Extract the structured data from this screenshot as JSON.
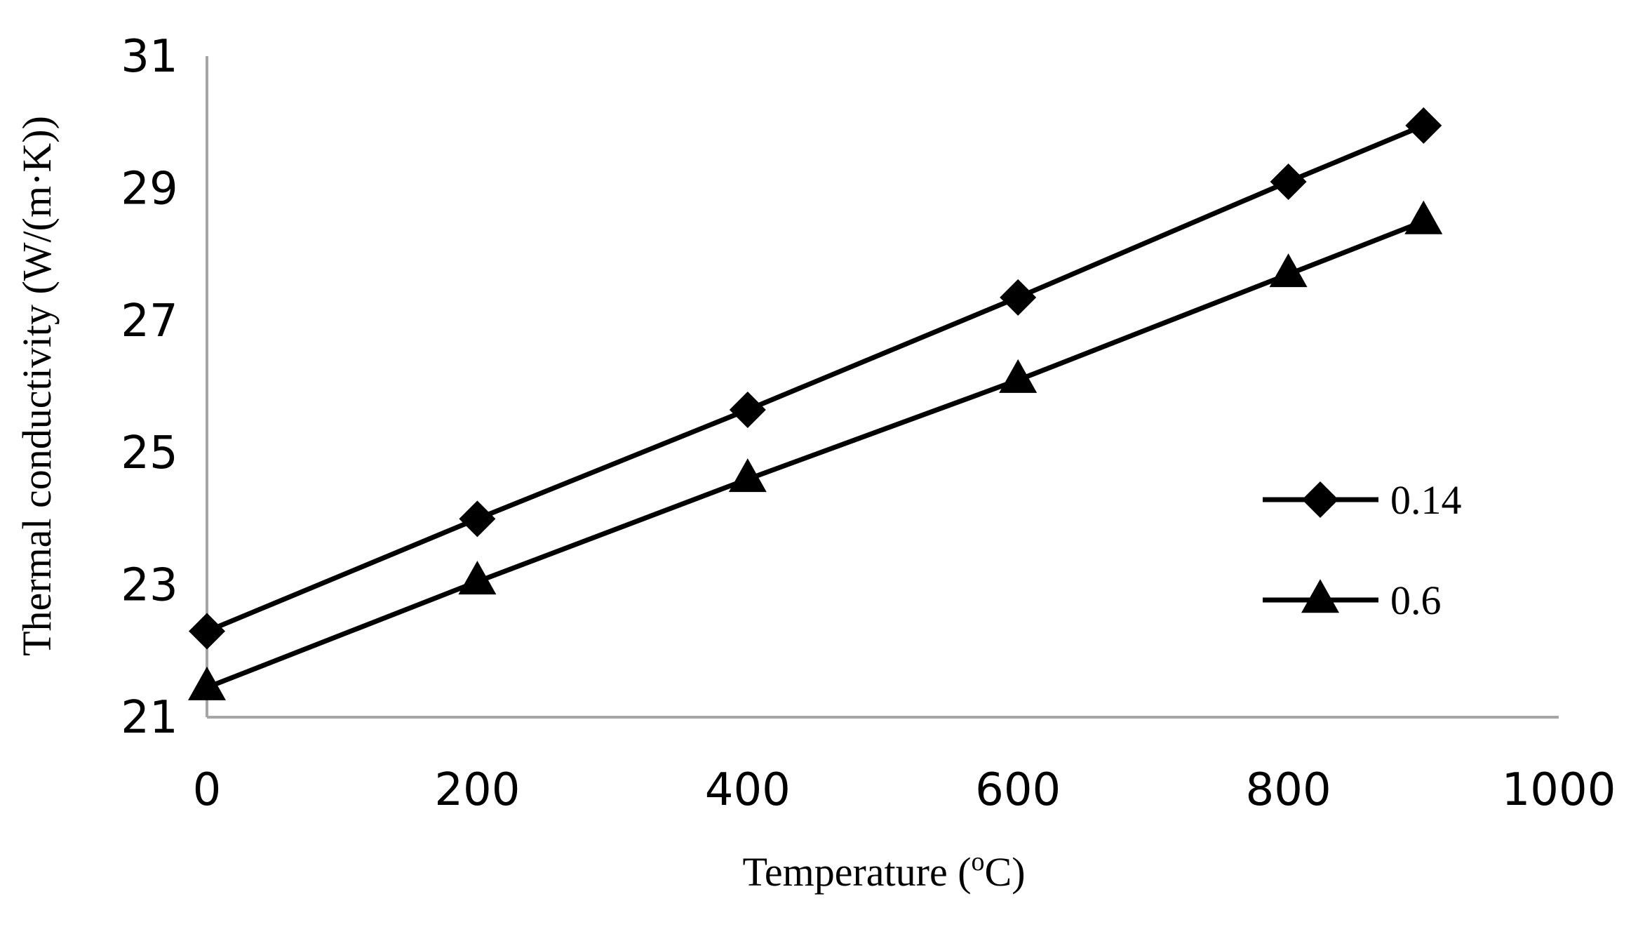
{
  "chart_data": {
    "type": "line",
    "title": "",
    "xlabel": "Temperature (",
    "xlabel_superscript": "o",
    "xlabel_suffix": "C)",
    "ylabel": "Thermal conductivity (W/(m·K))",
    "xlim": [
      0,
      1000
    ],
    "ylim": [
      21,
      31
    ],
    "xticks": [
      0,
      200,
      400,
      600,
      800,
      1000
    ],
    "yticks": [
      21,
      23,
      25,
      27,
      29,
      31
    ],
    "x_tick_labels": [
      "0",
      "200",
      "400",
      "600",
      "800",
      "1000"
    ],
    "y_tick_labels": [
      "21",
      "23",
      "25",
      "27",
      "29",
      "31"
    ],
    "grid": false,
    "legend_position": "right",
    "series": [
      {
        "name": "0.14",
        "marker": "diamond",
        "color": "#000000",
        "x": [
          0,
          200,
          400,
          600,
          800,
          900
        ],
        "y": [
          22.3,
          24.0,
          25.65,
          27.35,
          29.1,
          29.95
        ]
      },
      {
        "name": "0.6",
        "marker": "triangle",
        "color": "#000000",
        "x": [
          0,
          200,
          400,
          600,
          800,
          900
        ],
        "y": [
          21.45,
          23.05,
          24.6,
          26.1,
          27.7,
          28.5
        ]
      }
    ]
  }
}
